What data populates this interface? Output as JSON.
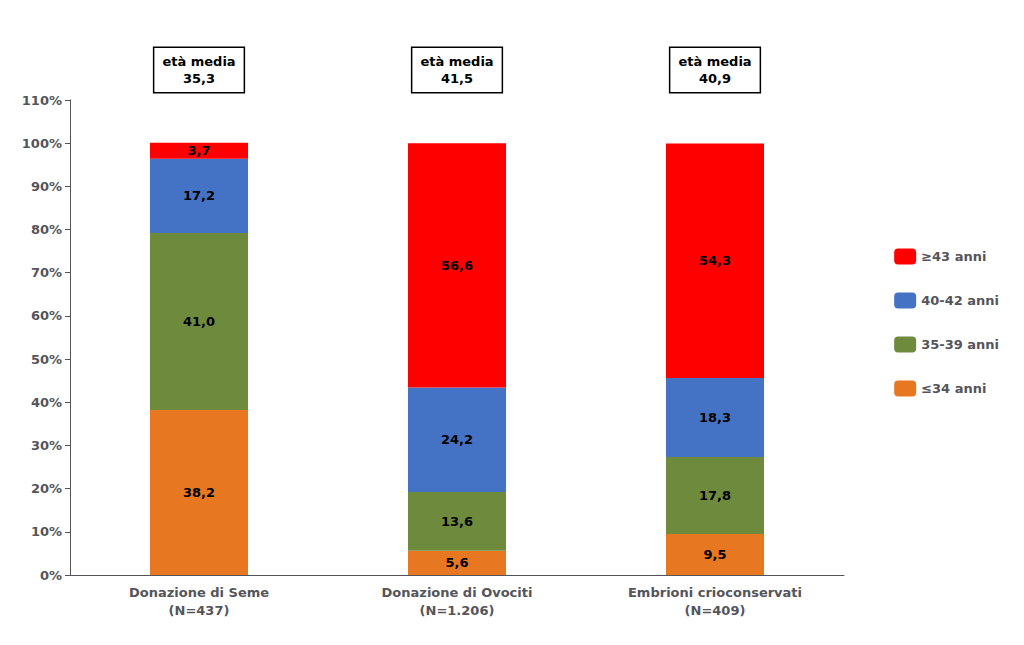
{
  "chart_data": {
    "type": "bar",
    "stacked": true,
    "categories": [
      "Donazione di Seme\n(N=437)",
      "Donazione di Ovociti\n(N=1.206)",
      "Embrioni crioconservati\n(N=409)"
    ],
    "series": [
      {
        "name": "≤34 anni",
        "color": "#E87722",
        "values": [
          38.2,
          5.6,
          9.5
        ],
        "value_labels": [
          "38,2",
          "5,6",
          "9,5"
        ]
      },
      {
        "name": "35-39 anni",
        "color": "#6E8B3D",
        "values": [
          41.0,
          13.6,
          17.8
        ],
        "value_labels": [
          "41,0",
          "13,6",
          "17,8"
        ]
      },
      {
        "name": "40-42 anni",
        "color": "#4472C4",
        "values": [
          17.2,
          24.2,
          18.3
        ],
        "value_labels": [
          "17,2",
          "24,2",
          "18,3"
        ]
      },
      {
        "name": "≥43 anni",
        "color": "#FF0000",
        "values": [
          3.7,
          56.6,
          54.3
        ],
        "value_labels": [
          "3,7",
          "56,6",
          "54,3"
        ]
      }
    ],
    "annotations": [
      {
        "category": "Donazione di Seme\n(N=437)",
        "text": "età media\n35,3"
      },
      {
        "category": "Donazione di Ovociti\n(N=1.206)",
        "text": "età media\n41,5"
      },
      {
        "category": "Embrioni crioconservati\n(N=409)",
        "text": "età media\n40,9"
      }
    ],
    "data_labels": true,
    "ylim": [
      0,
      110
    ],
    "yticks": [
      {
        "value": 0,
        "label": "0%"
      },
      {
        "value": 10,
        "label": "10%"
      },
      {
        "value": 20,
        "label": "20%"
      },
      {
        "value": 30,
        "label": "30%"
      },
      {
        "value": 40,
        "label": "40%"
      },
      {
        "value": 50,
        "label": "50%"
      },
      {
        "value": 60,
        "label": "60%"
      },
      {
        "value": 70,
        "label": "70%"
      },
      {
        "value": 80,
        "label": "80%"
      },
      {
        "value": 90,
        "label": "90%"
      },
      {
        "value": 100,
        "label": "100%"
      },
      {
        "value": 110,
        "label": "110%"
      }
    ],
    "grid": false,
    "legend": "right"
  }
}
